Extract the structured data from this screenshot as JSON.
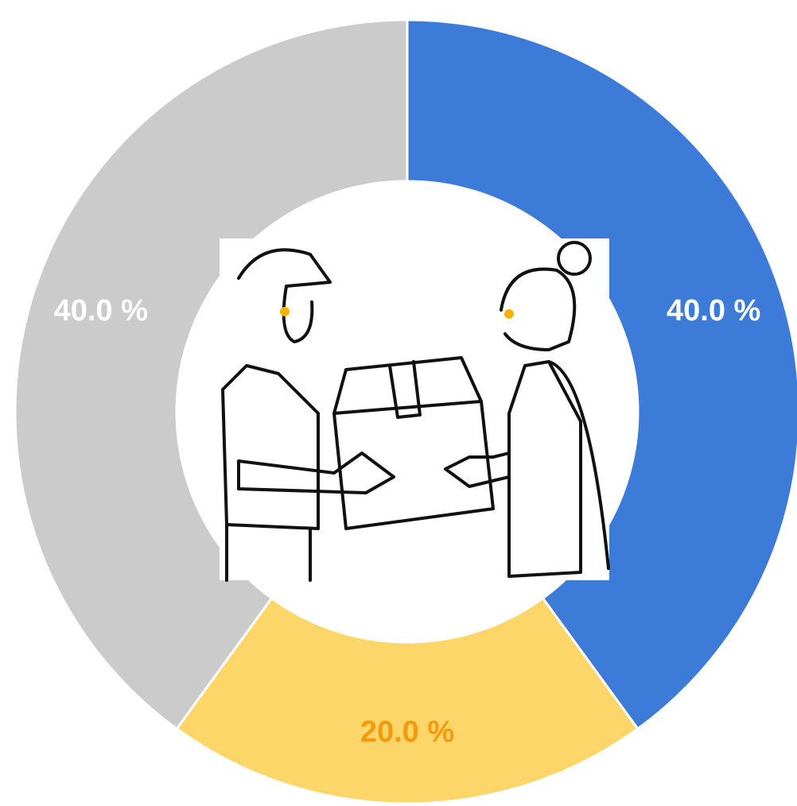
{
  "chart_data": {
    "type": "donut",
    "values": [
      40,
      20,
      40
    ],
    "value_labels": [
      "40.0 %",
      "20.0 %",
      "40.0 %"
    ],
    "colors": [
      "#3d7bd9",
      "#fdd669",
      "#cbcbcb"
    ],
    "label_colors": [
      "#ffffff",
      "#f59a0f",
      "#ffffff"
    ]
  }
}
